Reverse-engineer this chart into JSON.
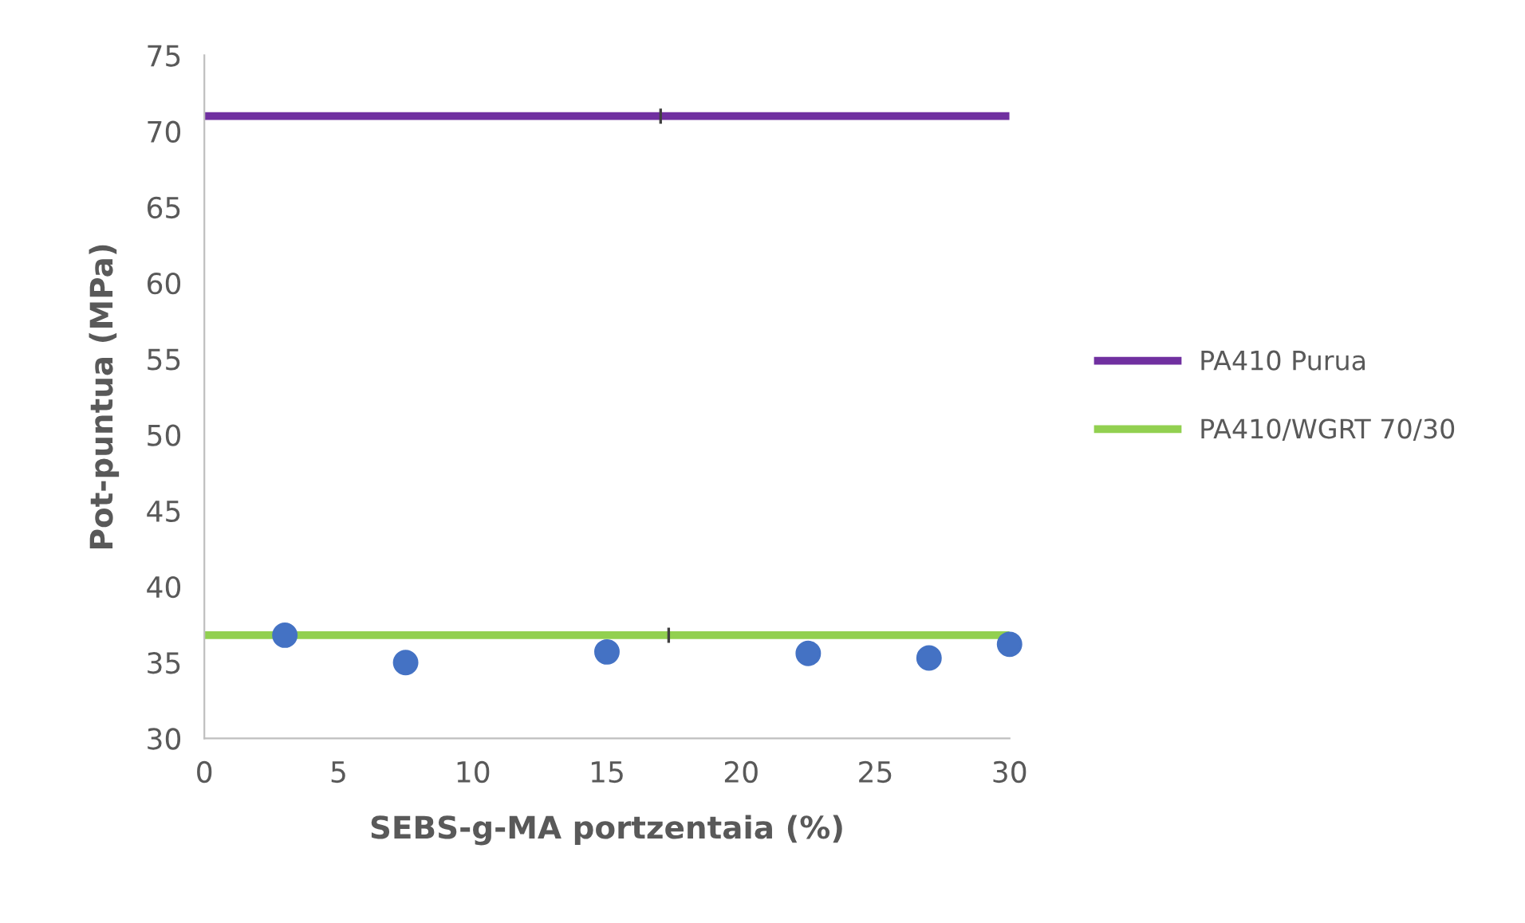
{
  "chart_data": {
    "type": "line",
    "xlabel": "SEBS-g-MA portzentaia (%)",
    "ylabel": "Pot-puntua (MPa)",
    "xlim": [
      0,
      30
    ],
    "ylim": [
      30,
      75
    ],
    "xticks": [
      0,
      5,
      10,
      15,
      20,
      25,
      30
    ],
    "yticks": [
      30,
      35,
      40,
      45,
      50,
      55,
      60,
      65,
      70,
      75
    ],
    "grid": false,
    "legend": "right",
    "series": [
      {
        "name": "PA410 Purua",
        "color": "#7030a0",
        "x": [
          0,
          17,
          30
        ],
        "values": [
          71,
          71,
          71
        ],
        "errors": [
          null,
          0.5,
          null
        ]
      },
      {
        "name": "PA410/WGRT 70/30",
        "color": "#92d050",
        "x": [
          0,
          17.3,
          30
        ],
        "values": [
          36.8,
          36.8,
          36.8
        ],
        "errors": [
          null,
          0.5,
          null
        ]
      },
      {
        "color": "#4472c4",
        "type": "scatter",
        "marker": "circle",
        "x": [
          3,
          7.5,
          15,
          22.5,
          27,
          30
        ],
        "values": [
          36.8,
          35.0,
          35.7,
          35.6,
          35.3,
          36.2
        ]
      }
    ]
  }
}
